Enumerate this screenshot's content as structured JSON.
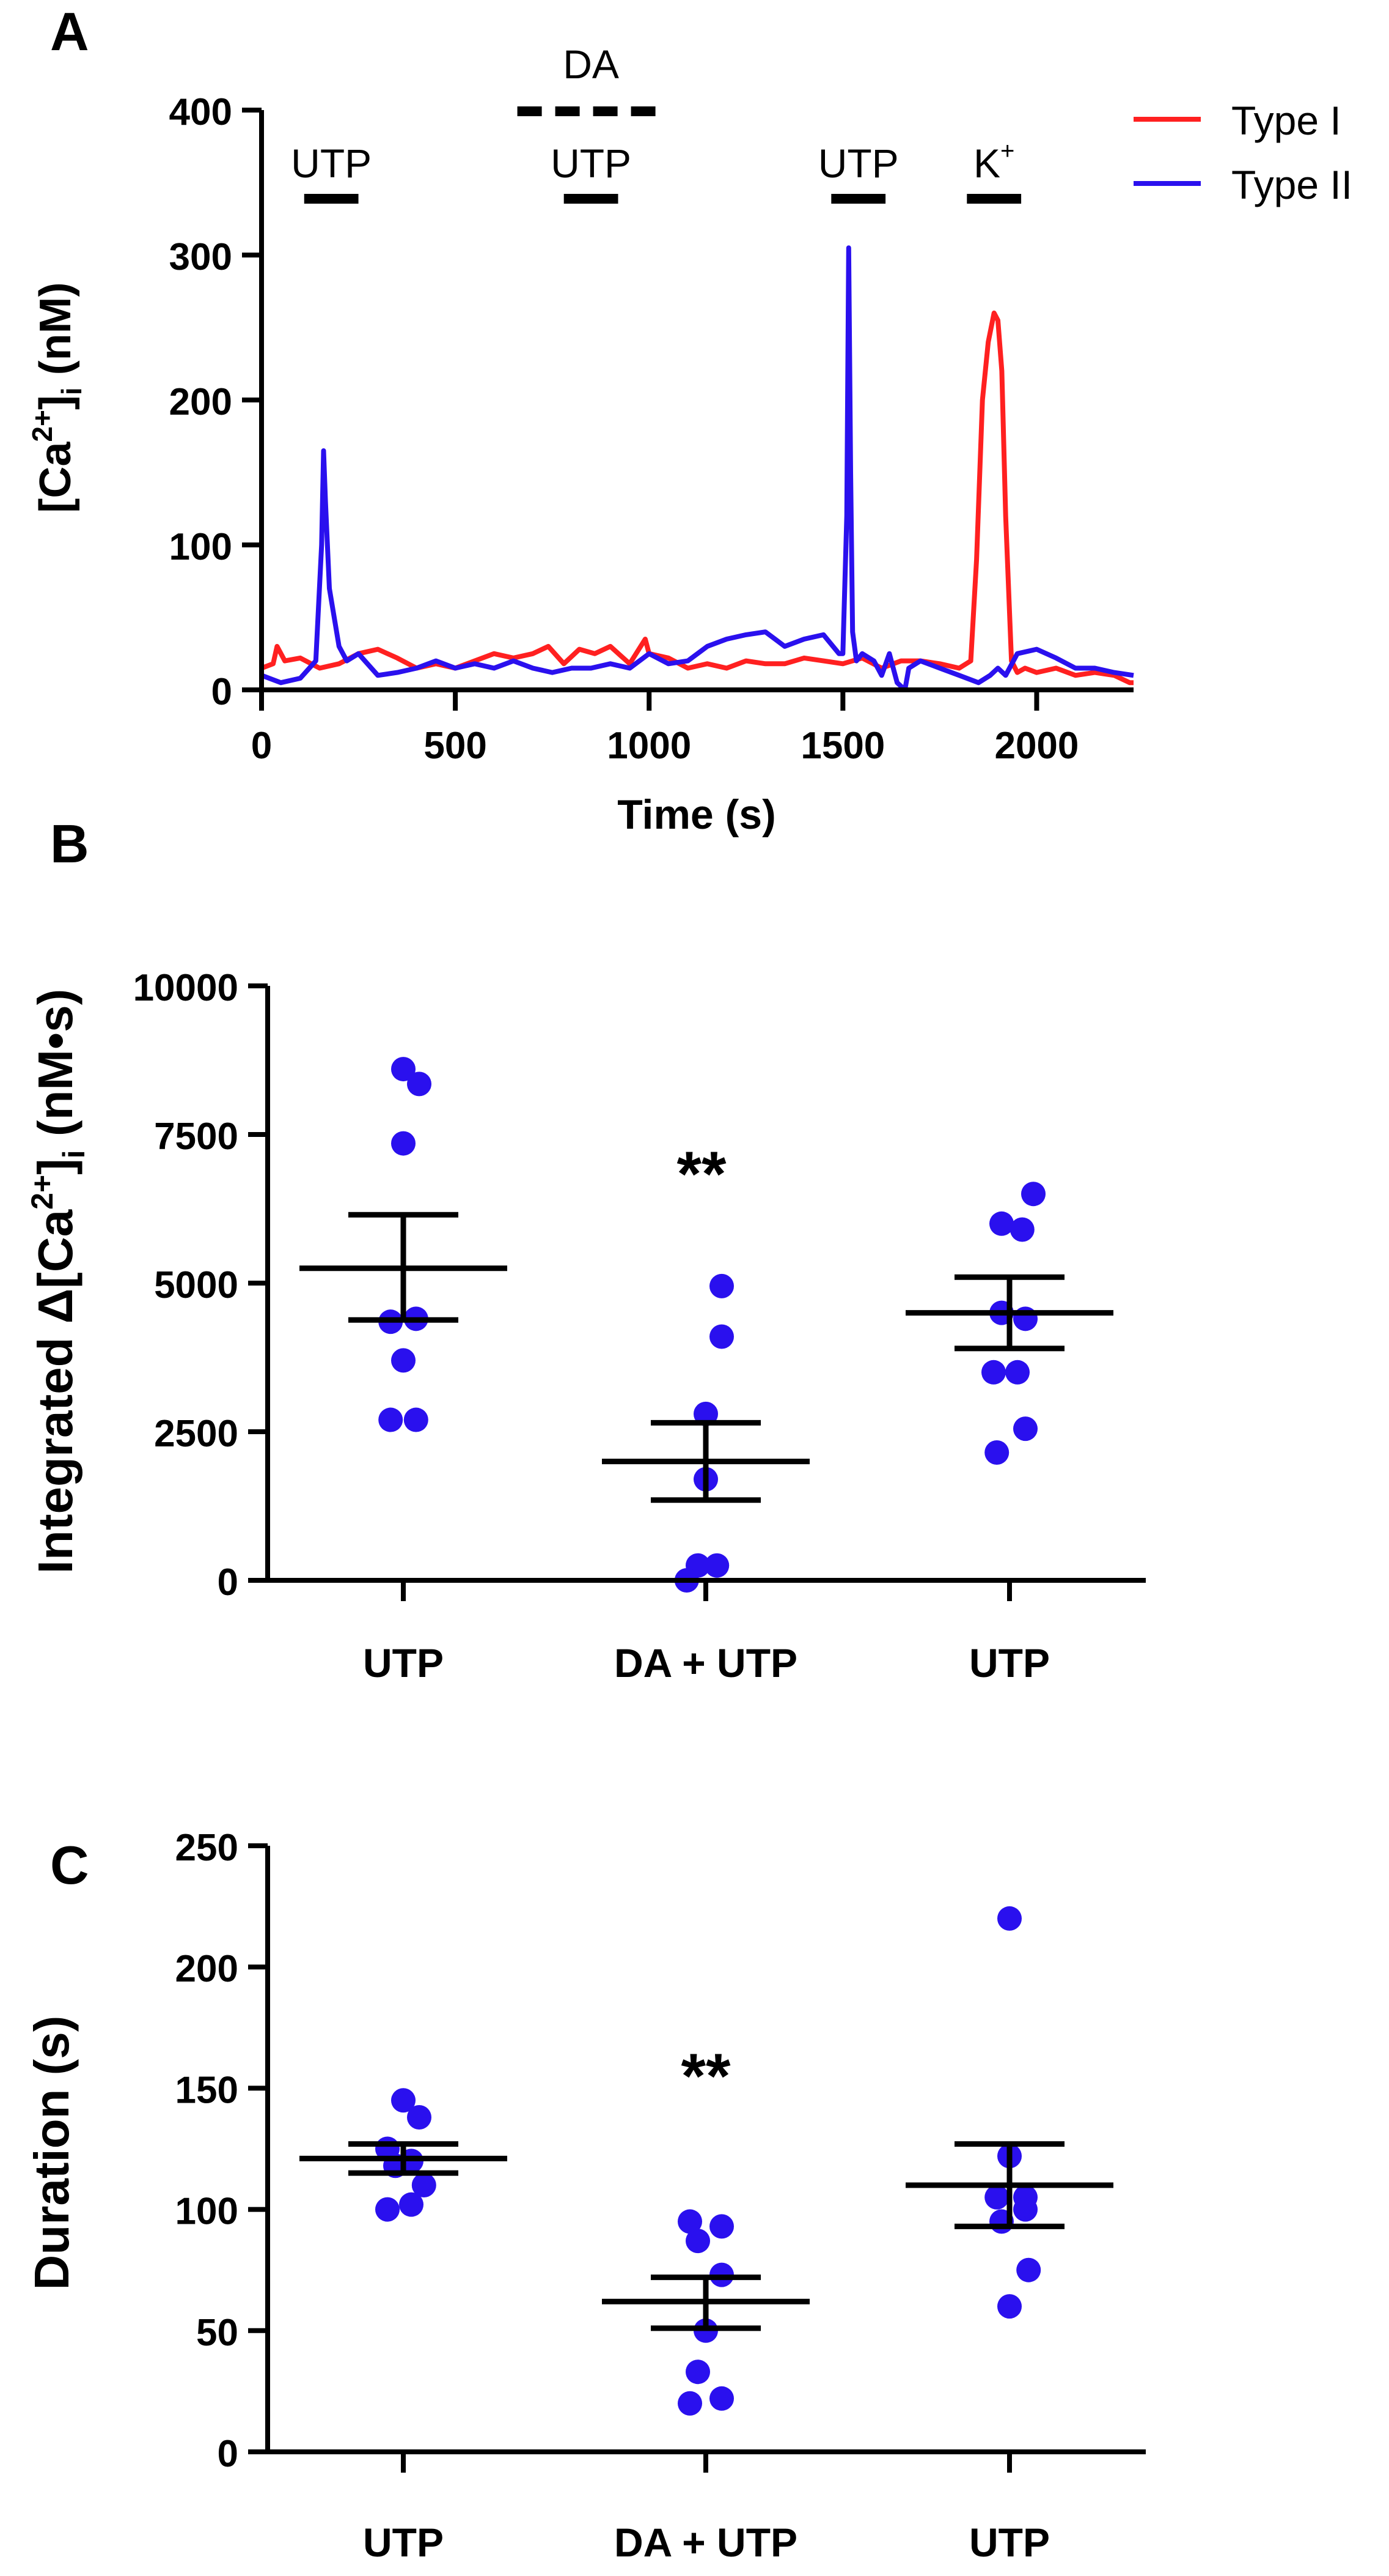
{
  "panels": [
    {
      "label": "A",
      "chart_data": {
        "type": "line",
        "title": "",
        "xlabel": "Time (s)",
        "ylabel": "[Ca2+]i (nM)",
        "xlim": [
          0,
          2250
        ],
        "ylim": [
          0,
          400
        ],
        "xticks": [
          0,
          500,
          1000,
          1500,
          2000
        ],
        "yticks": [
          0,
          100,
          200,
          300,
          400
        ],
        "legend": {
          "position": "top-right",
          "entries": [
            "Type I",
            "Type II"
          ]
        },
        "annotations": [
          {
            "text": "DA",
            "x_start": 660,
            "x_end": 1040,
            "style": "dashed"
          },
          {
            "text": "UTP",
            "x_start": 110,
            "x_end": 250,
            "style": "solid"
          },
          {
            "text": "UTP",
            "x_start": 780,
            "x_end": 920,
            "style": "solid"
          },
          {
            "text": "UTP",
            "x_start": 1470,
            "x_end": 1610,
            "style": "solid"
          },
          {
            "text": "K+",
            "x_start": 1820,
            "x_end": 1960,
            "style": "solid"
          }
        ],
        "series": [
          {
            "name": "Type I",
            "color": "#ff2020",
            "x": [
              0,
              30,
              40,
              60,
              100,
              150,
              200,
              250,
              300,
              350,
              400,
              450,
              500,
              550,
              600,
              650,
              700,
              740,
              780,
              820,
              860,
              900,
              950,
              990,
              1000,
              1050,
              1100,
              1150,
              1200,
              1250,
              1300,
              1350,
              1400,
              1450,
              1500,
              1550,
              1600,
              1650,
              1700,
              1750,
              1800,
              1830,
              1845,
              1860,
              1875,
              1890,
              1900,
              1910,
              1920,
              1935,
              1950,
              1970,
              2000,
              2050,
              2100,
              2150,
              2200,
              2240,
              2250
            ],
            "values": [
              15,
              18,
              30,
              20,
              22,
              15,
              18,
              25,
              28,
              22,
              15,
              18,
              15,
              20,
              25,
              22,
              25,
              30,
              18,
              28,
              25,
              30,
              18,
              35,
              25,
              22,
              15,
              18,
              15,
              20,
              18,
              18,
              22,
              20,
              18,
              22,
              15,
              20,
              20,
              18,
              15,
              20,
              90,
              200,
              240,
              260,
              255,
              220,
              120,
              20,
              12,
              15,
              12,
              15,
              10,
              12,
              10,
              5,
              5
            ]
          },
          {
            "name": "Type II",
            "color": "#2a10ee",
            "x": [
              0,
              50,
              100,
              140,
              155,
              160,
              165,
              175,
              200,
              220,
              250,
              300,
              350,
              400,
              450,
              500,
              550,
              600,
              650,
              700,
              750,
              800,
              850,
              900,
              950,
              1000,
              1050,
              1100,
              1150,
              1200,
              1250,
              1300,
              1350,
              1400,
              1450,
              1490,
              1500,
              1510,
              1515,
              1520,
              1525,
              1535,
              1550,
              1580,
              1600,
              1620,
              1640,
              1660,
              1670,
              1700,
              1750,
              1800,
              1850,
              1880,
              1900,
              1920,
              1950,
              2000,
              2050,
              2100,
              2150,
              2200,
              2250
            ],
            "values": [
              10,
              5,
              8,
              20,
              100,
              165,
              130,
              70,
              30,
              20,
              25,
              10,
              12,
              15,
              20,
              15,
              18,
              15,
              20,
              15,
              12,
              15,
              15,
              18,
              15,
              25,
              18,
              20,
              30,
              35,
              38,
              40,
              30,
              35,
              38,
              25,
              25,
              120,
              305,
              150,
              40,
              20,
              25,
              20,
              10,
              25,
              5,
              0,
              15,
              20,
              15,
              10,
              5,
              10,
              15,
              10,
              25,
              28,
              22,
              15,
              15,
              12,
              10
            ]
          }
        ]
      }
    },
    {
      "label": "B",
      "significance": "**",
      "chart_data": {
        "type": "scatter",
        "title": "",
        "xlabel": "",
        "ylabel": "Integrated Δ[Ca2+]i (nM•s)",
        "categories": [
          "UTP",
          "DA + UTP",
          "UTP"
        ],
        "ylim": [
          0,
          10000
        ],
        "yticks": [
          0,
          2500,
          5000,
          7500,
          10000
        ],
        "series": [
          {
            "color": "#2a10ee",
            "points": [
              [
                [
                  0,
                  8600
                ],
                [
                  0.1,
                  8350
                ],
                [
                  0,
                  7350
                ],
                [
                  -0.08,
                  4350
                ],
                [
                  0.08,
                  4400
                ],
                [
                  0,
                  3700
                ],
                [
                  -0.08,
                  2700
                ],
                [
                  0.08,
                  2700
                ]
              ],
              [
                [
                  0.1,
                  4950
                ],
                [
                  0.1,
                  4100
                ],
                [
                  0,
                  2800
                ],
                [
                  0,
                  1700
                ],
                [
                  -0.05,
                  250
                ],
                [
                  0.07,
                  250
                ],
                [
                  -0.12,
                  0
                ]
              ],
              [
                [
                  -0.05,
                  6000
                ],
                [
                  0.08,
                  5900
                ],
                [
                  0.15,
                  6500
                ],
                [
                  -0.05,
                  4500
                ],
                [
                  0.1,
                  4400
                ],
                [
                  -0.1,
                  3500
                ],
                [
                  0.05,
                  3500
                ],
                [
                  -0.08,
                  2150
                ],
                [
                  0.1,
                  2550
                ]
              ]
            ],
            "mean": [
              5250,
              2000,
              4500
            ],
            "sem_low": [
              4380,
              1350,
              3900
            ],
            "sem_high": [
              6150,
              2650,
              5100
            ]
          }
        ]
      }
    },
    {
      "label": "C",
      "significance": "**",
      "chart_data": {
        "type": "scatter",
        "title": "",
        "xlabel": "",
        "ylabel": "Duration (s)",
        "categories": [
          "UTP",
          "DA + UTP",
          "UTP"
        ],
        "ylim": [
          0,
          250
        ],
        "yticks": [
          0,
          50,
          100,
          150,
          200,
          250
        ],
        "series": [
          {
            "color": "#2a10ee",
            "points": [
              [
                [
                  0,
                  145
                ],
                [
                  0.1,
                  138
                ],
                [
                  -0.1,
                  125
                ],
                [
                  0.05,
                  120
                ],
                [
                  -0.05,
                  118
                ],
                [
                  0.13,
                  110
                ],
                [
                  -0.1,
                  100
                ],
                [
                  0.05,
                  102
                ]
              ],
              [
                [
                  -0.1,
                  95
                ],
                [
                  0.1,
                  93
                ],
                [
                  -0.05,
                  87
                ],
                [
                  0.1,
                  73
                ],
                [
                  0,
                  50
                ],
                [
                  -0.05,
                  33
                ],
                [
                  -0.1,
                  20
                ],
                [
                  0.1,
                  22
                ]
              ],
              [
                [
                  0,
                  220
                ],
                [
                  0,
                  122
                ],
                [
                  -0.08,
                  105
                ],
                [
                  0.1,
                  105
                ],
                [
                  -0.05,
                  95
                ],
                [
                  0.1,
                  100
                ],
                [
                  0.12,
                  75
                ],
                [
                  0,
                  60
                ]
              ]
            ],
            "mean": [
              121,
              62,
              110
            ],
            "sem_low": [
              115,
              51,
              93
            ],
            "sem_high": [
              127,
              72,
              127
            ]
          }
        ]
      }
    }
  ]
}
